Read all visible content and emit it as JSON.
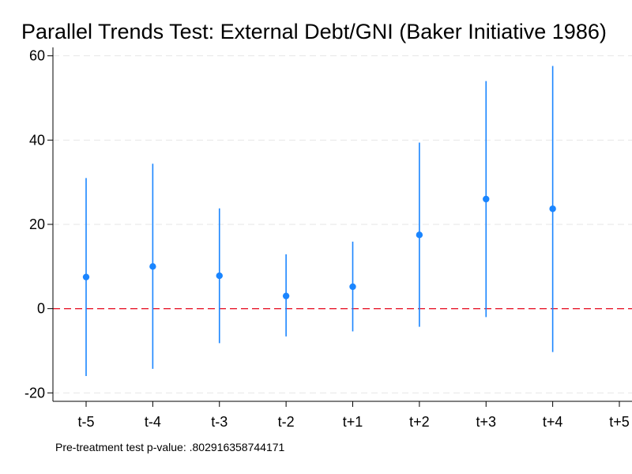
{
  "chart_data": {
    "type": "scatter",
    "title": "Parallel Trends Test: External Debt/GNI (Baker Initiative 1986)",
    "xlabel": "",
    "ylabel": "",
    "categories": [
      "t-5",
      "t-4",
      "t-3",
      "t-2",
      "t+1",
      "t+2",
      "t+3",
      "t+4",
      "t+5"
    ],
    "ylim": [
      -22,
      62
    ],
    "y_ticks": [
      -20,
      0,
      20,
      40,
      60
    ],
    "grid": true,
    "reference_line": {
      "y": 0,
      "style": "dashed",
      "color": "#e8192c"
    },
    "series": [
      {
        "values": [
          7.5,
          10.0,
          7.8,
          3.0,
          5.2,
          17.5,
          26.0,
          23.7,
          null
        ],
        "ci_low": [
          -16.0,
          -14.3,
          -8.2,
          -6.6,
          -5.4,
          -4.3,
          -2.0,
          -10.3,
          null
        ],
        "ci_high": [
          31.0,
          34.4,
          23.8,
          12.9,
          15.9,
          39.4,
          54.0,
          57.6,
          null
        ],
        "color": "#1a85ff"
      }
    ],
    "note": "Pre-treatment test p-value: .802916358744171"
  }
}
